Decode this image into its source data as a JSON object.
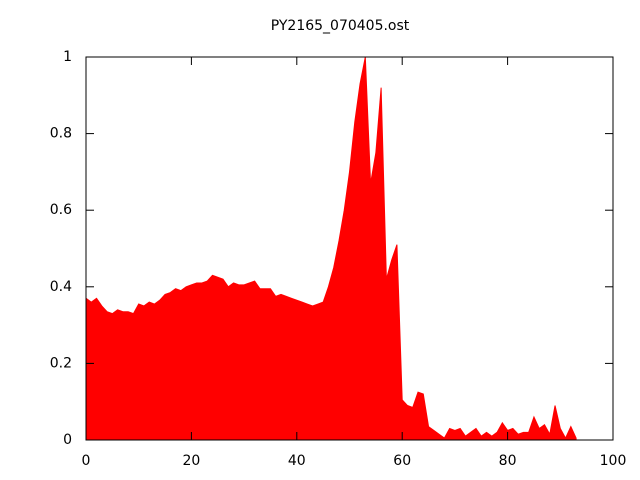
{
  "chart_data": {
    "type": "area",
    "title": "PY2165_070405.ost",
    "x": [
      0,
      1,
      2,
      3,
      4,
      5,
      6,
      7,
      8,
      9,
      10,
      11,
      12,
      13,
      14,
      15,
      16,
      17,
      18,
      19,
      20,
      21,
      22,
      23,
      24,
      25,
      26,
      27,
      28,
      29,
      30,
      31,
      32,
      33,
      34,
      35,
      36,
      37,
      38,
      39,
      40,
      41,
      42,
      43,
      44,
      45,
      46,
      47,
      48,
      49,
      50,
      51,
      52,
      53,
      54,
      55,
      56,
      57,
      58,
      59,
      60,
      61,
      62,
      63,
      64,
      65,
      66,
      67,
      68,
      69,
      70,
      71,
      72,
      73,
      74,
      75,
      76,
      77,
      78,
      79,
      80,
      81,
      82,
      83,
      84,
      85,
      86,
      87,
      88,
      89,
      90,
      91,
      92,
      93
    ],
    "values": [
      0.37,
      0.36,
      0.37,
      0.35,
      0.335,
      0.33,
      0.34,
      0.335,
      0.335,
      0.33,
      0.355,
      0.35,
      0.36,
      0.355,
      0.365,
      0.38,
      0.385,
      0.395,
      0.39,
      0.4,
      0.405,
      0.41,
      0.41,
      0.415,
      0.43,
      0.425,
      0.42,
      0.4,
      0.41,
      0.405,
      0.405,
      0.41,
      0.415,
      0.395,
      0.395,
      0.395,
      0.375,
      0.38,
      0.375,
      0.37,
      0.365,
      0.36,
      0.355,
      0.35,
      0.355,
      0.36,
      0.4,
      0.45,
      0.52,
      0.6,
      0.7,
      0.83,
      0.93,
      1.0,
      0.67,
      0.75,
      0.92,
      0.42,
      0.47,
      0.51,
      0.105,
      0.09,
      0.085,
      0.125,
      0.12,
      0.035,
      0.025,
      0.015,
      0.005,
      0.03,
      0.025,
      0.03,
      0.01,
      0.02,
      0.03,
      0.01,
      0.02,
      0.01,
      0.02,
      0.045,
      0.025,
      0.03,
      0.015,
      0.02,
      0.02,
      0.06,
      0.03,
      0.04,
      0.015,
      0.09,
      0.03,
      0.005,
      0.035,
      0.005
    ],
    "color": "#ff0000",
    "xlim": [
      0,
      100
    ],
    "xticks": [
      0,
      20,
      40,
      60,
      80,
      100
    ],
    "ylim": [
      0,
      1
    ],
    "yticks": [
      0,
      0.2,
      0.4,
      0.6,
      0.8,
      1
    ]
  }
}
